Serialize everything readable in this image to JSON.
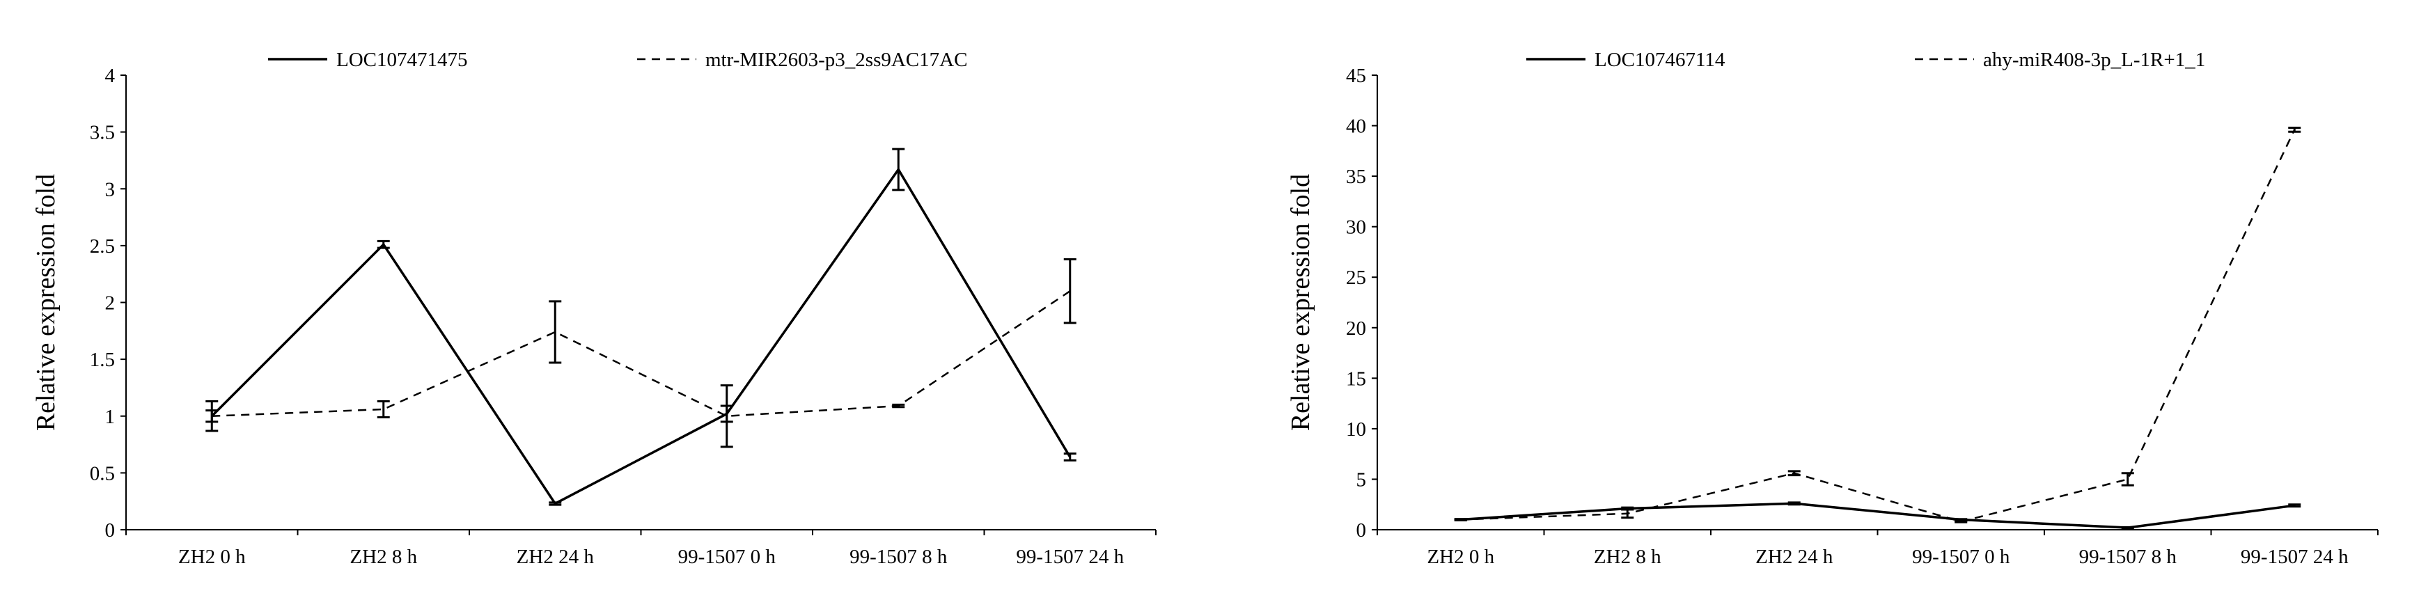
{
  "chart_data": [
    {
      "type": "line",
      "title": "",
      "xlabel": "",
      "ylabel": "Relative expression fold",
      "categories": [
        "ZH2 0 h",
        "ZH2 8 h",
        "ZH2 24 h",
        "99-1507 0 h",
        "99-1507 8 h",
        "99-1507 24 h"
      ],
      "ylim": [
        0,
        4
      ],
      "yticks": [
        "0",
        "0.5",
        "1",
        "1.5",
        "2",
        "2.5",
        "3",
        "3.5",
        "4"
      ],
      "grid": false,
      "legend_position": "top",
      "series": [
        {
          "name": "LOC107471475",
          "style": "solid",
          "values": [
            1.0,
            2.51,
            0.23,
            1.02,
            3.17,
            0.64
          ],
          "errors": [
            0.13,
            0.03,
            0.01,
            0.07,
            0.18,
            0.03
          ]
        },
        {
          "name": "mtr-MIR2603-p3_2ss9AC17AC",
          "style": "dashed",
          "values": [
            1.0,
            1.06,
            1.74,
            1.0,
            1.09,
            2.1
          ],
          "errors": [
            0.05,
            0.07,
            0.27,
            0.27,
            0.01,
            0.28
          ]
        }
      ]
    },
    {
      "type": "line",
      "title": "",
      "xlabel": "",
      "ylabel": "Relative expression fold",
      "categories": [
        "ZH2 0 h",
        "ZH2 8 h",
        "ZH2 24 h",
        "99-1507 0 h",
        "99-1507 8 h",
        "99-1507 24 h"
      ],
      "ylim": [
        0,
        45
      ],
      "yticks": [
        "0",
        "5",
        "10",
        "15",
        "20",
        "25",
        "30",
        "35",
        "40",
        "45"
      ],
      "grid": false,
      "legend_position": "top",
      "series": [
        {
          "name": "LOC107467114",
          "style": "solid",
          "values": [
            1.0,
            2.1,
            2.6,
            1.0,
            0.2,
            2.4
          ],
          "errors": [
            0.05,
            0.1,
            0.1,
            0.05,
            0.05,
            0.1
          ]
        },
        {
          "name": "ahy-miR408-3p_L-1R+1_1",
          "style": "dashed",
          "values": [
            1.0,
            1.6,
            5.6,
            0.8,
            5.0,
            39.6
          ],
          "errors": [
            0.05,
            0.4,
            0.2,
            0.05,
            0.6,
            0.2
          ]
        }
      ]
    }
  ]
}
